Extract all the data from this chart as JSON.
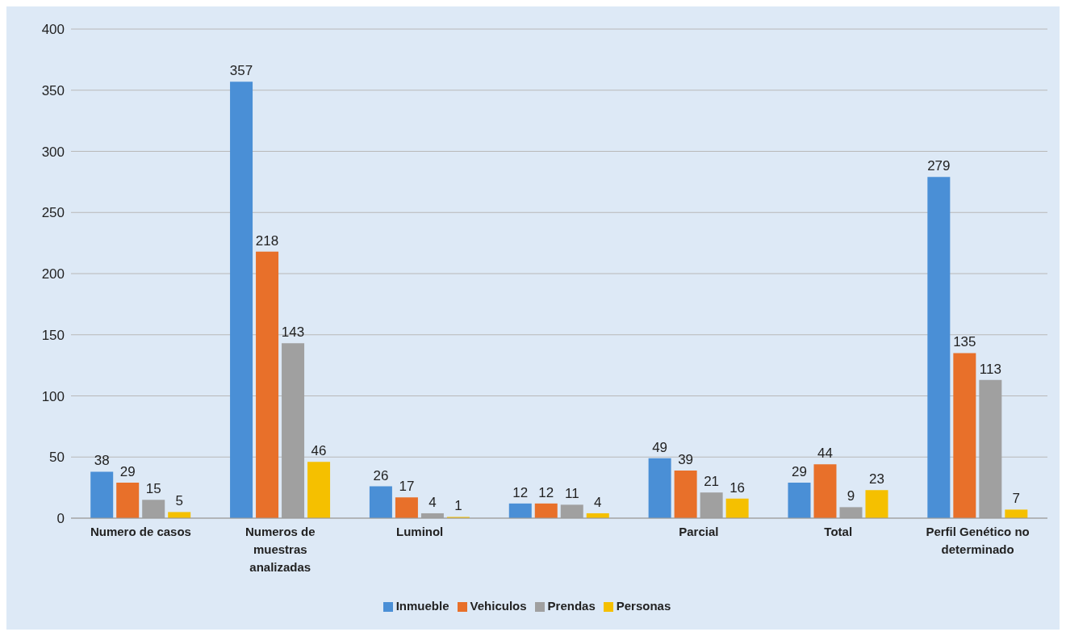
{
  "chart_data": {
    "type": "bar",
    "categories": [
      "Numero de casos",
      "Numeros de muestras analizadas",
      "Luminol",
      null,
      "Parcial",
      "Total",
      "Perfil Genético no determinado"
    ],
    "series": [
      {
        "name": "Inmueble",
        "color": "#4a8fd6",
        "values": [
          38,
          357,
          26,
          12,
          49,
          29,
          279
        ]
      },
      {
        "name": "Vehiculos",
        "color": "#e8702a",
        "values": [
          29,
          218,
          17,
          12,
          39,
          44,
          135
        ]
      },
      {
        "name": "Prendas",
        "color": "#a0a0a0",
        "values": [
          15,
          143,
          4,
          11,
          21,
          9,
          113
        ]
      },
      {
        "name": "Personas",
        "color": "#f5c000",
        "values": [
          5,
          46,
          1,
          4,
          16,
          23,
          7
        ]
      }
    ],
    "ylim": [
      0,
      400
    ],
    "yticks": [
      0,
      50,
      100,
      150,
      200,
      250,
      300,
      350,
      400
    ],
    "grid": "y",
    "legend": "bottom",
    "data_labels": true
  }
}
